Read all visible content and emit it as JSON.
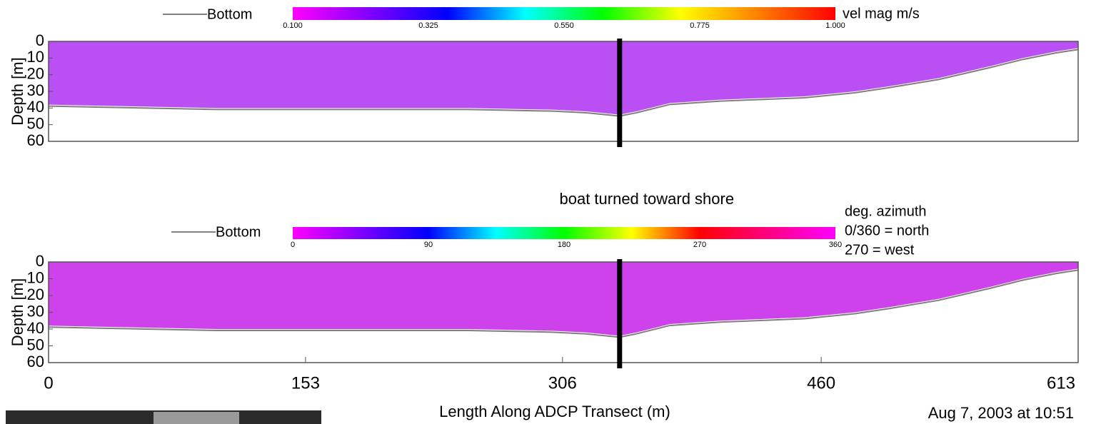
{
  "chart_data": [
    {
      "type": "line",
      "colorbar_label": [
        "vel mag m/s"
      ],
      "colorbar_lim": [
        0.1,
        1.0
      ],
      "colorbar_ticks": [
        {
          "value": 0.1,
          "label": "0.100"
        },
        {
          "value": 0.325,
          "label": "0.325"
        },
        {
          "value": 0.55,
          "label": "0.550"
        },
        {
          "value": 0.775,
          "label": "0.775"
        },
        {
          "value": 1.0,
          "label": "1.000"
        }
      ],
      "colormap": [
        "#ff00ff",
        "#8000ff",
        "#0000ff",
        "#00ffff",
        "#00ff00",
        "#ffff00",
        "#ff8000",
        "#ff0000"
      ],
      "fill_color": "#b23cf2",
      "ylabel": "Depth [m]",
      "ylim": [
        60,
        0
      ],
      "yticks": [
        0,
        10,
        20,
        30,
        40,
        50,
        60
      ],
      "xlim": [
        0,
        613
      ],
      "turn_x": 340,
      "x": [
        0,
        50,
        100,
        150,
        200,
        250,
        300,
        320,
        340,
        350,
        370,
        400,
        450,
        480,
        500,
        530,
        560,
        580,
        600,
        613
      ],
      "series": [
        {
          "name": "Bottom",
          "color": "#808080",
          "values": [
            38,
            39,
            40,
            40,
            40,
            40,
            41,
            42,
            44,
            42,
            37,
            35,
            33,
            30,
            27,
            22,
            15,
            10,
            6,
            4
          ]
        }
      ]
    },
    {
      "type": "line",
      "annotation": "boat turned toward shore",
      "colorbar_label": [
        "deg. azimuth",
        "0/360 = north",
        "270 = west"
      ],
      "colorbar_lim": [
        0,
        360
      ],
      "colorbar_ticks": [
        0,
        90,
        180,
        270,
        360
      ],
      "colormap": [
        "#ff00ff",
        "#8000ff",
        "#0000ff",
        "#00ffff",
        "#00ff00",
        "#ffff00",
        "#ff0000",
        "#ff0080",
        "#ff00ff"
      ],
      "fill_color": "#c82ee8",
      "ylabel": "Depth [m]",
      "ylim": [
        60,
        0
      ],
      "yticks": [
        0,
        10,
        20,
        30,
        40,
        50,
        60
      ],
      "xlim": [
        0,
        613
      ],
      "xticks": [
        0,
        153,
        306,
        460,
        613
      ],
      "xlabel": "Length Along ADCP Transect (m)",
      "date": "Aug 7, 2003 at 10:51",
      "turn_x": 340,
      "x": [
        0,
        50,
        100,
        150,
        200,
        250,
        300,
        320,
        340,
        350,
        370,
        400,
        450,
        480,
        500,
        530,
        560,
        580,
        600,
        613
      ],
      "series": [
        {
          "name": "Bottom",
          "color": "#808080",
          "values": [
            38,
            39,
            40,
            40,
            40,
            40,
            41,
            42,
            44,
            42,
            37,
            35,
            33,
            30,
            27,
            22,
            15,
            10,
            6,
            4
          ]
        }
      ]
    }
  ]
}
